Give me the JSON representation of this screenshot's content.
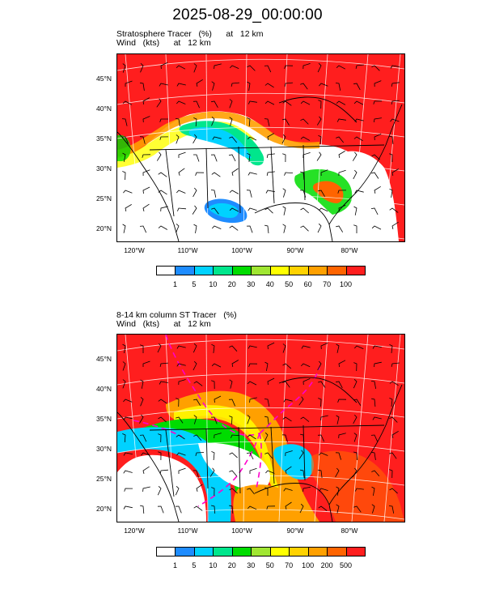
{
  "page": {
    "title": "2025-08-29_00:00:00"
  },
  "panels": [
    {
      "title_line1": "Stratosphere Tracer   (%)      at   12 km",
      "title_line2": "Wind   (kts)      at   12 km",
      "lat_labels": [
        "45°N",
        "40°N",
        "35°N",
        "30°N",
        "25°N",
        "20°N"
      ],
      "lon_labels": [
        "120°W",
        "110°W",
        "100°W",
        "90°W",
        "80°W"
      ],
      "colorbar": {
        "colors": [
          "#ffffff",
          "#1e8cff",
          "#00d2ff",
          "#00e68c",
          "#00dc00",
          "#a0e632",
          "#ffff00",
          "#ffd200",
          "#ffa000",
          "#ff6400",
          "#ff1e1e"
        ],
        "labels": [
          "1",
          "5",
          "10",
          "20",
          "30",
          "40",
          "50",
          "60",
          "70",
          "100"
        ]
      }
    },
    {
      "title_line1": "8-14 km column ST Tracer   (%)",
      "title_line2": "Wind   (kts)      at   12 km",
      "lat_labels": [
        "45°N",
        "40°N",
        "35°N",
        "30°N",
        "25°N",
        "20°N"
      ],
      "lon_labels": [
        "120°W",
        "110°W",
        "100°W",
        "90°W",
        "80°W"
      ],
      "colorbar": {
        "colors": [
          "#ffffff",
          "#1e8cff",
          "#00d2ff",
          "#00e68c",
          "#00dc00",
          "#a0e632",
          "#ffff00",
          "#ffd200",
          "#ffa000",
          "#ff6400",
          "#ff1e1e"
        ],
        "labels": [
          "1",
          "5",
          "10",
          "20",
          "30",
          "50",
          "70",
          "100",
          "200",
          "500"
        ]
      }
    }
  ]
}
